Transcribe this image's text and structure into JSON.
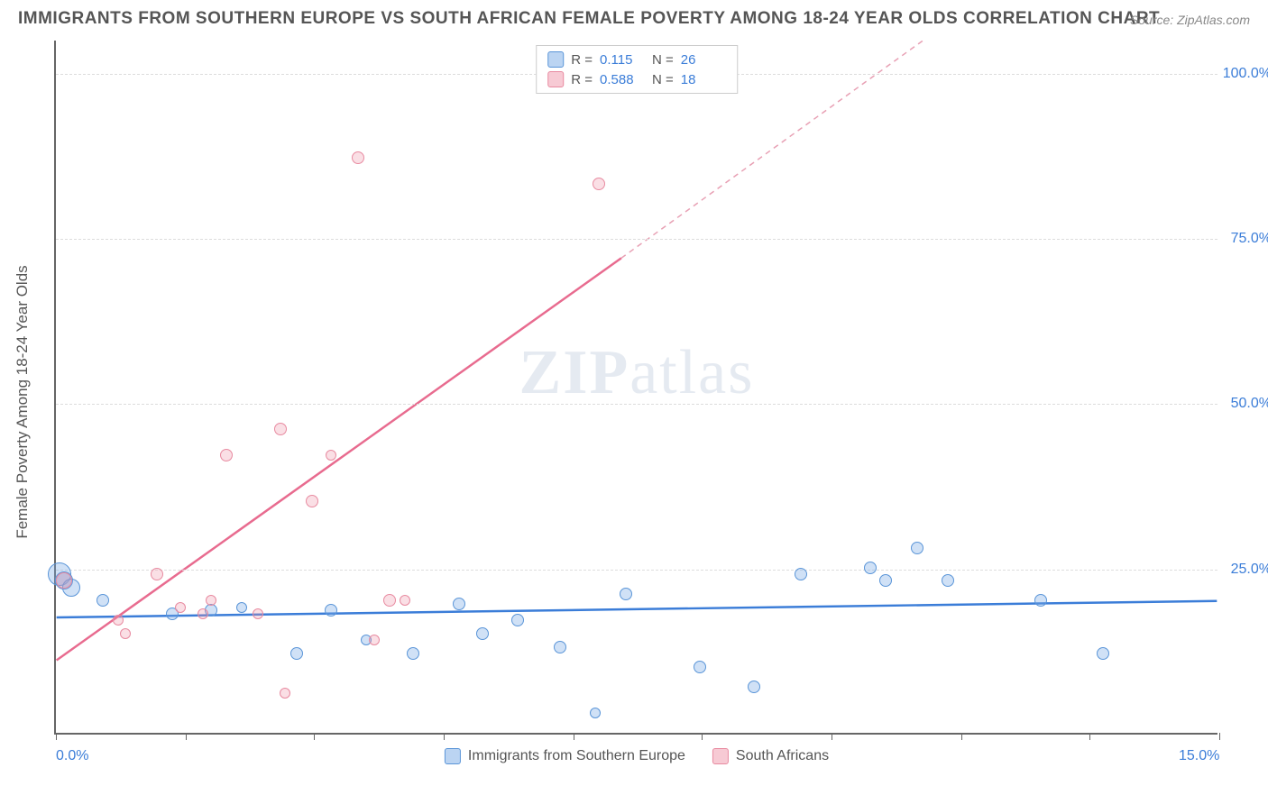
{
  "title": "IMMIGRANTS FROM SOUTHERN EUROPE VS SOUTH AFRICAN FEMALE POVERTY AMONG 18-24 YEAR OLDS CORRELATION CHART",
  "source": "Source: ZipAtlas.com",
  "ylabel": "Female Poverty Among 18-24 Year Olds",
  "watermark_a": "ZIP",
  "watermark_b": "atlas",
  "chart": {
    "type": "scatter",
    "xlim": [
      0,
      15
    ],
    "ylim": [
      0,
      105
    ],
    "xticks": [
      0,
      1.67,
      3.33,
      5,
      6.67,
      8.33,
      10,
      11.67,
      13.33,
      15
    ],
    "xtick_labels": {
      "0": "0.0%",
      "15": "15.0%"
    },
    "yticks": [
      25,
      50,
      75,
      100
    ],
    "ytick_labels": [
      "25.0%",
      "50.0%",
      "75.0%",
      "100.0%"
    ],
    "background_color": "#ffffff",
    "grid_color": "#dddddd",
    "series": [
      {
        "name": "Immigrants from Southern Europe",
        "color": "#5a95d8",
        "fill": "rgba(120,170,230,0.35)",
        "r_value": "0.115",
        "n_value": "26",
        "trend": {
          "y_at_x0": 17.5,
          "y_at_x15": 20,
          "dash": null,
          "end_x": 15
        },
        "points": [
          {
            "x": 0.05,
            "y": 24,
            "size": 26
          },
          {
            "x": 0.1,
            "y": 23,
            "size": 20
          },
          {
            "x": 0.2,
            "y": 22,
            "size": 20
          },
          {
            "x": 0.6,
            "y": 20,
            "size": 14
          },
          {
            "x": 1.5,
            "y": 18,
            "size": 14
          },
          {
            "x": 2.0,
            "y": 18.5,
            "size": 14
          },
          {
            "x": 2.4,
            "y": 19,
            "size": 12
          },
          {
            "x": 3.1,
            "y": 12,
            "size": 14
          },
          {
            "x": 3.55,
            "y": 18.5,
            "size": 14
          },
          {
            "x": 4.0,
            "y": 14,
            "size": 12
          },
          {
            "x": 4.6,
            "y": 12,
            "size": 14
          },
          {
            "x": 5.2,
            "y": 19.5,
            "size": 14
          },
          {
            "x": 5.5,
            "y": 15,
            "size": 14
          },
          {
            "x": 5.95,
            "y": 17,
            "size": 14
          },
          {
            "x": 6.5,
            "y": 13,
            "size": 14
          },
          {
            "x": 6.95,
            "y": 3,
            "size": 12
          },
          {
            "x": 7.35,
            "y": 21,
            "size": 14
          },
          {
            "x": 8.3,
            "y": 10,
            "size": 14
          },
          {
            "x": 9.0,
            "y": 7,
            "size": 14
          },
          {
            "x": 9.6,
            "y": 24,
            "size": 14
          },
          {
            "x": 10.5,
            "y": 25,
            "size": 14
          },
          {
            "x": 10.7,
            "y": 23,
            "size": 14
          },
          {
            "x": 11.1,
            "y": 28,
            "size": 14
          },
          {
            "x": 11.5,
            "y": 23,
            "size": 14
          },
          {
            "x": 12.7,
            "y": 20,
            "size": 14
          },
          {
            "x": 13.5,
            "y": 12,
            "size": 14
          }
        ]
      },
      {
        "name": "South Africans",
        "color": "#e86b8f",
        "fill": "rgba(240,150,170,0.3)",
        "r_value": "0.588",
        "n_value": "18",
        "trend": {
          "y_at_x0": 11,
          "y_at_solid_end": 72,
          "solid_end_x": 7.3,
          "dash_end_x": 11.2,
          "dash_end_y": 105
        },
        "points": [
          {
            "x": 0.1,
            "y": 23,
            "size": 18
          },
          {
            "x": 0.8,
            "y": 17,
            "size": 12
          },
          {
            "x": 0.9,
            "y": 15,
            "size": 12
          },
          {
            "x": 1.3,
            "y": 24,
            "size": 14
          },
          {
            "x": 1.6,
            "y": 19,
            "size": 12
          },
          {
            "x": 1.9,
            "y": 18,
            "size": 12
          },
          {
            "x": 2.0,
            "y": 20,
            "size": 12
          },
          {
            "x": 2.2,
            "y": 42,
            "size": 14
          },
          {
            "x": 2.6,
            "y": 18,
            "size": 12
          },
          {
            "x": 2.9,
            "y": 46,
            "size": 14
          },
          {
            "x": 2.95,
            "y": 6,
            "size": 12
          },
          {
            "x": 3.3,
            "y": 35,
            "size": 14
          },
          {
            "x": 3.55,
            "y": 42,
            "size": 12
          },
          {
            "x": 3.9,
            "y": 87,
            "size": 14
          },
          {
            "x": 4.1,
            "y": 14,
            "size": 12
          },
          {
            "x": 4.3,
            "y": 20,
            "size": 14
          },
          {
            "x": 4.5,
            "y": 20,
            "size": 12
          },
          {
            "x": 7.0,
            "y": 83,
            "size": 14
          }
        ]
      }
    ]
  },
  "legend_top": {
    "rows": [
      {
        "swatch": "blue",
        "r_label": "R =",
        "r_val": "0.115",
        "n_label": "N =",
        "n_val": "26"
      },
      {
        "swatch": "pink",
        "r_label": "R =",
        "r_val": "0.588",
        "n_label": "N =",
        "n_val": "18"
      }
    ]
  },
  "legend_bottom": {
    "items": [
      {
        "swatch": "blue",
        "label": "Immigrants from Southern Europe"
      },
      {
        "swatch": "pink",
        "label": "South Africans"
      }
    ]
  }
}
